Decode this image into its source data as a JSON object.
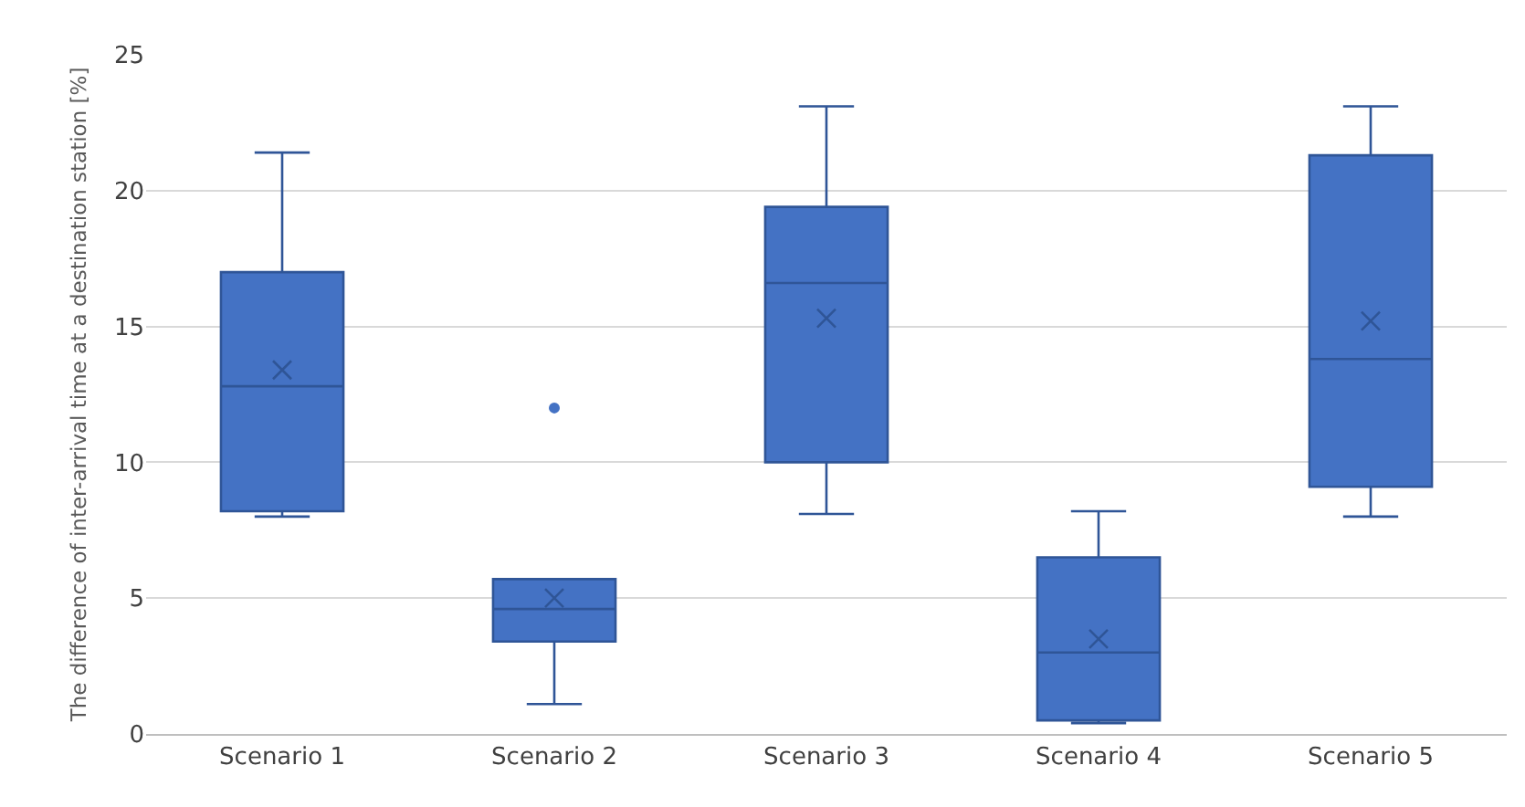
{
  "chart_data": {
    "type": "box",
    "ylabel": "The difference of inter-arrival time at a destination station [%]",
    "categories": [
      "Scenario 1",
      "Scenario 2",
      "Scenario 3",
      "Scenario 4",
      "Scenario 5"
    ],
    "color": "#4472c4",
    "boxes": [
      {
        "low": 8.0,
        "q1": 8.2,
        "median": 12.8,
        "q3": 17.0,
        "high": 21.4,
        "mean": 13.4
      },
      {
        "low": 1.1,
        "q1": 3.4,
        "median": 4.6,
        "q3": 5.7,
        "high": 5.7,
        "mean": 5.0,
        "outliers": [
          12.0
        ]
      },
      {
        "low": 8.1,
        "q1": 10.0,
        "median": 16.6,
        "q3": 19.4,
        "high": 23.1,
        "mean": 15.3
      },
      {
        "low": 0.4,
        "q1": 0.5,
        "median": 3.0,
        "q3": 6.5,
        "high": 8.2,
        "mean": 3.5
      },
      {
        "low": 8.0,
        "q1": 9.1,
        "median": 13.8,
        "q3": 21.3,
        "high": 23.1,
        "mean": 15.2
      }
    ],
    "ylim": [
      0,
      25
    ],
    "yticks": [
      0,
      5,
      10,
      15,
      20,
      25
    ],
    "grid": "y"
  }
}
